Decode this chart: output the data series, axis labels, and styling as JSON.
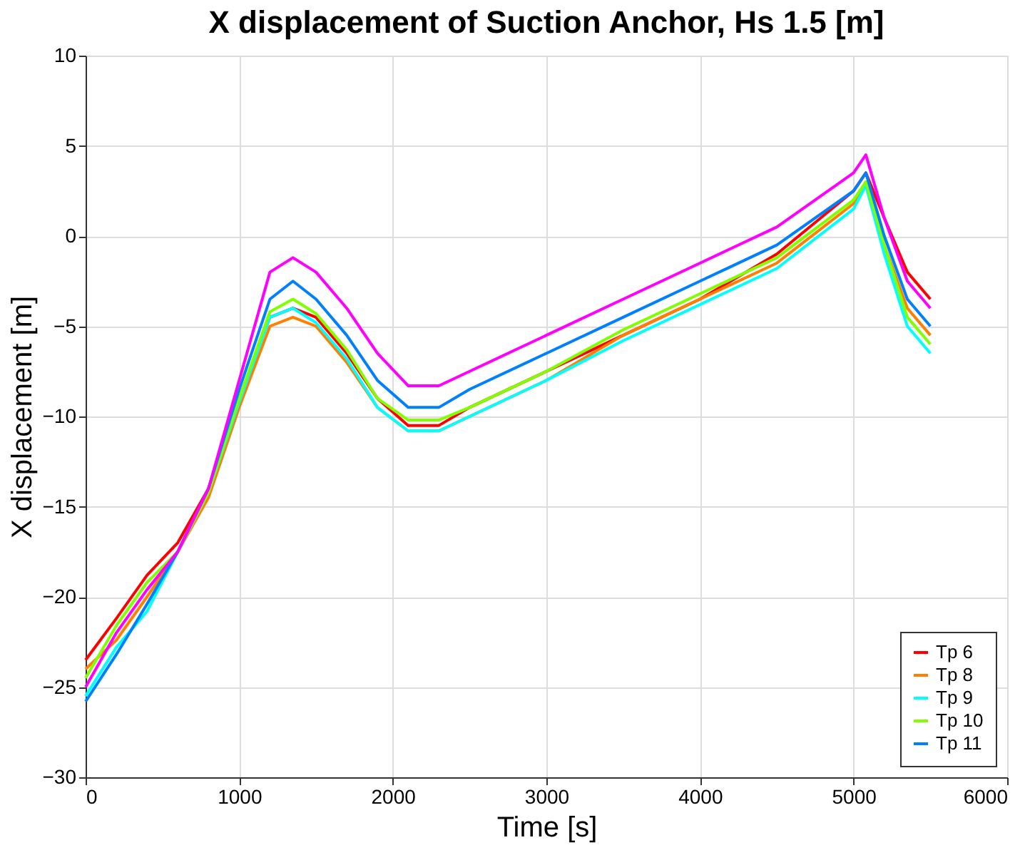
{
  "chart_data": {
    "type": "line",
    "title": "X displacement of Suction Anchor, Hs 1.5 [m]",
    "xlabel": "Time [s]",
    "ylabel": "X displacement [m]",
    "x": [
      0,
      200,
      400,
      600,
      800,
      1000,
      1200,
      1350,
      1500,
      1700,
      1900,
      2100,
      2300,
      2500,
      3000,
      3500,
      4000,
      4500,
      5000,
      5080,
      5200,
      5350,
      5500
    ],
    "series": [
      {
        "name": "Tp 6",
        "color": "#ff0000",
        "values": [
          -23.5,
          -21.2,
          -18.8,
          -17,
          -14,
          -9,
          -4.5,
          -4,
          -4.5,
          -6.5,
          -9,
          -10.5,
          -10.5,
          -9.5,
          -7.5,
          -5.5,
          -3.5,
          -1,
          2.5,
          3.5,
          1,
          -2,
          -3.5
        ]
      },
      {
        "name": "Tp 8",
        "color": "#ff8000",
        "values": [
          -24,
          -22.4,
          -20,
          -17.5,
          -14.5,
          -9.5,
          -5,
          -4.5,
          -5,
          -7,
          -9.5,
          -10.8,
          -10.8,
          -10,
          -8,
          -5.5,
          -3.5,
          -1.5,
          1.8,
          3,
          -0.5,
          -4,
          -5.5
        ]
      },
      {
        "name": "Tp 9",
        "color": "#00ffff",
        "values": [
          -25.5,
          -22.8,
          -20.8,
          -17.5,
          -14.2,
          -9.2,
          -4.5,
          -4,
          -4.8,
          -6.8,
          -9.5,
          -10.8,
          -10.8,
          -10,
          -8,
          -5.8,
          -3.8,
          -1.8,
          1.5,
          2.8,
          -1,
          -5,
          -6.5
        ]
      },
      {
        "name": "Tp 10",
        "color": "#80ff00",
        "values": [
          -24.5,
          -21.6,
          -19.2,
          -17.5,
          -14.2,
          -9,
          -4.2,
          -3.5,
          -4.3,
          -6.3,
          -9,
          -10.2,
          -10.2,
          -9.5,
          -7.5,
          -5.2,
          -3.2,
          -1.2,
          2,
          3,
          -0.5,
          -4.5,
          -6
        ]
      },
      {
        "name": "Tp 11",
        "color": "#0080ff",
        "values": [
          -25.8,
          -23.2,
          -20.4,
          -17.5,
          -14,
          -8.5,
          -3.5,
          -2.5,
          -3.5,
          -5.5,
          -8,
          -9.5,
          -9.5,
          -8.5,
          -6.5,
          -4.5,
          -2.5,
          -0.5,
          2.5,
          3.5,
          0,
          -3.5,
          -5
        ]
      },
      {
        "color": "#ff00ff",
        "values": [
          -25,
          -22,
          -19.6,
          -17.5,
          -14,
          -8,
          -2,
          -1.2,
          -2,
          -4,
          -6.5,
          -8.3,
          -8.3,
          -7.5,
          -5.5,
          -3.5,
          -1.5,
          0.5,
          3.5,
          4.5,
          1,
          -2.5,
          -4
        ]
      }
    ],
    "xlim": [
      0,
      6000
    ],
    "xticks": [
      0,
      1000,
      2000,
      3000,
      4000,
      5000,
      6000
    ],
    "ylim": [
      -30,
      10
    ],
    "yticks": [
      -30,
      -25,
      -20,
      -15,
      -10,
      -5,
      0,
      5,
      10
    ],
    "grid": true,
    "legend": "bottom right",
    "line_style": "solid",
    "marker": "none"
  }
}
